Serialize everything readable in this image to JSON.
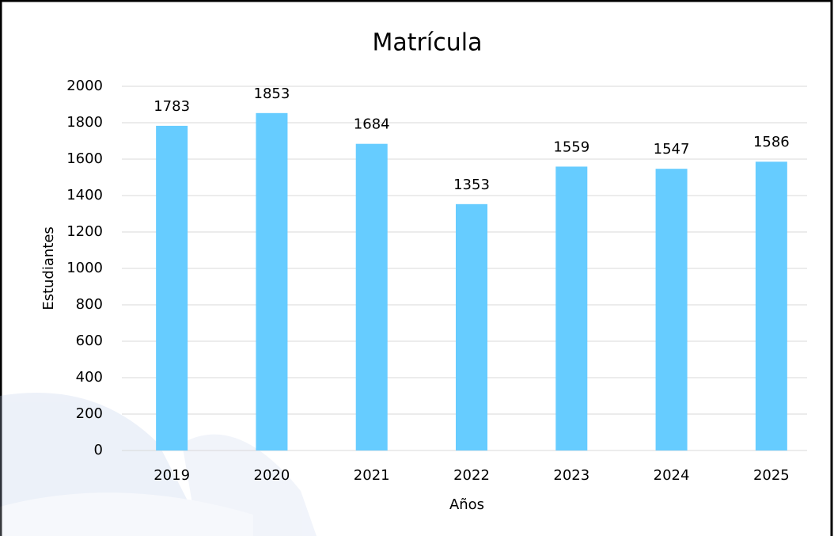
{
  "chart_data": {
    "type": "bar",
    "title": "Matrícula",
    "x_label": "Años",
    "y_label": "Estudiantes",
    "categories": [
      "2019",
      "2020",
      "2021",
      "2022",
      "2023",
      "2024",
      "2025"
    ],
    "values": [
      1783,
      1853,
      1684,
      1353,
      1559,
      1547,
      1586
    ],
    "color": "#66ccff",
    "ylim": [
      0,
      2000
    ],
    "yticks": [
      0,
      200,
      400,
      600,
      800,
      1000,
      1200,
      1400,
      1600,
      1800,
      2000
    ],
    "grid": true
  }
}
